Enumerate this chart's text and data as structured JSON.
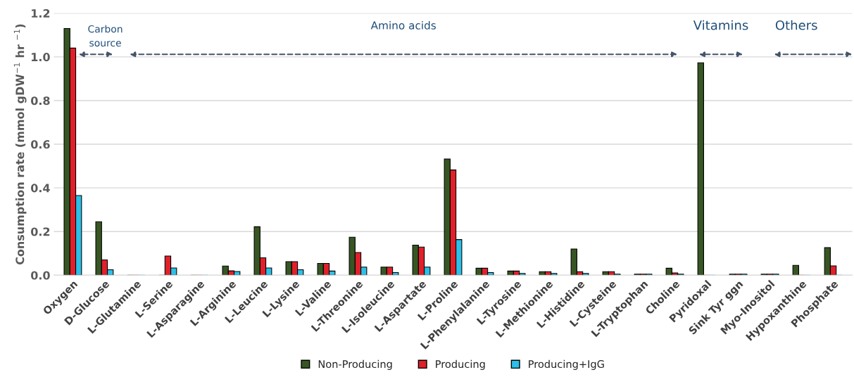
{
  "chart_data": {
    "type": "bar",
    "ylabel": "Consumption rate (mmol gDW$^{−1}$ hr $^{−1}$)",
    "categories": [
      "Oxygen",
      "D-Glucose",
      "L-Glutamine",
      "L-Serine",
      "L-Asparagine",
      "L-Arginine",
      "L-Leucine",
      "L-Lysine",
      "L-Valine",
      "L-Threonine",
      "L-Isoleucine",
      "L-Aspartate",
      "L-Proline",
      "L-Phenylalanine",
      "L-Tyrosine",
      "L-Methionine",
      "L-Histidine",
      "L-Cysteine",
      "L-Tryptophan",
      "Choline",
      "Pyridoxal",
      "Sink Tyr ggn",
      "Myo-Inositol",
      "Hypoxanthine",
      "Phosphate"
    ],
    "series": [
      {
        "name": "Non-Producing",
        "color": "#375623",
        "values": [
          1.13,
          0.245,
          0,
          0,
          0,
          0.042,
          0.222,
          0.062,
          0.054,
          0.174,
          0.037,
          0.138,
          0.532,
          0.032,
          0.019,
          0.016,
          0.12,
          0.016,
          0.005,
          0.032,
          0.973,
          0.005,
          0.005,
          0.045,
          0.126
        ]
      },
      {
        "name": "Producing",
        "color": "#e0202a",
        "values": [
          1.04,
          0.07,
          0,
          0.088,
          0,
          0.02,
          0.08,
          0.062,
          0.054,
          0.104,
          0.037,
          0.129,
          0.482,
          0.032,
          0.019,
          0.016,
          0.016,
          0.016,
          0.005,
          0.01,
          0,
          0.005,
          0.005,
          0,
          0.043
        ]
      },
      {
        "name": "Producing+IgG",
        "color": "#2dc0e8",
        "values": [
          0.365,
          0.025,
          0,
          0.033,
          0,
          0.017,
          0.033,
          0.025,
          0.019,
          0.037,
          0.012,
          0.037,
          0.163,
          0.012,
          0.008,
          0.008,
          0.008,
          0.005,
          0.005,
          0.005,
          0,
          0.005,
          0.005,
          0,
          0
        ]
      }
    ],
    "ylim": [
      0,
      1.2
    ],
    "yticks": [
      {
        "value": 0,
        "label": "0.0"
      },
      {
        "value": 0.2,
        "label": "0.2"
      },
      {
        "value": 0.4,
        "label": "0.4"
      },
      {
        "value": 0.6,
        "label": "0.6"
      },
      {
        "value": 0.8,
        "label": "0.8"
      },
      {
        "value": 1.0,
        "label": "1.0"
      },
      {
        "value": 1.2,
        "label": "1.2"
      }
    ],
    "grid": "y",
    "legend": "bottom",
    "annotations": [
      "Carbon\nsource",
      "Amino acids",
      "Vitamins",
      "Others"
    ]
  }
}
